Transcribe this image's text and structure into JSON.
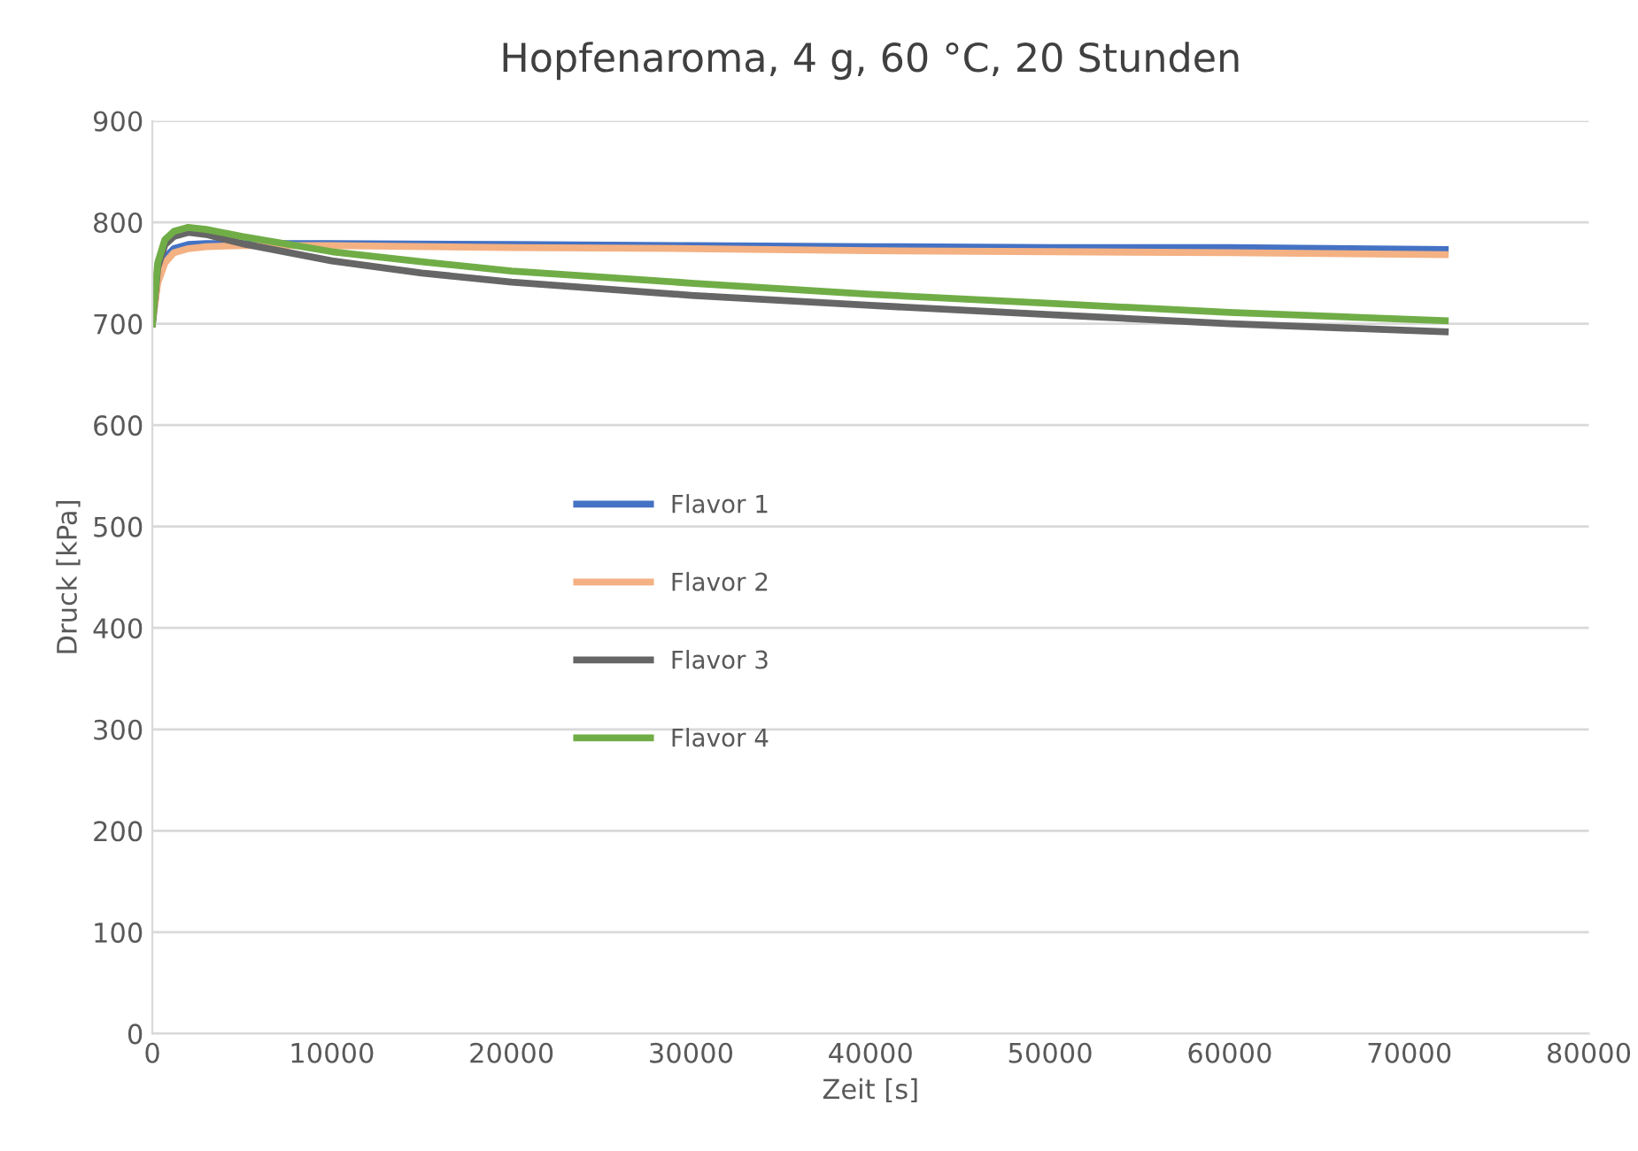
{
  "chart_data": {
    "type": "line",
    "title": "Hopfenaroma, 4 g, 60 °C, 20 Stunden",
    "xlabel": "Zeit [s]",
    "ylabel": "Druck [kPa]",
    "xlim": [
      0,
      80000
    ],
    "xticks": [
      0,
      10000,
      20000,
      30000,
      40000,
      50000,
      60000,
      70000,
      80000
    ],
    "ylim": [
      0,
      900
    ],
    "yticks": [
      0,
      100,
      200,
      300,
      400,
      500,
      600,
      700,
      800,
      900
    ],
    "grid": "y",
    "legend": "center left",
    "line_style": "solid",
    "marker": "none",
    "series": [
      {
        "name": "Flavor 1",
        "color": "#4472c4",
        "x": [
          0,
          300,
          700,
          1200,
          2000,
          3000,
          5000,
          10000,
          20000,
          30000,
          40000,
          50000,
          60000,
          72000
        ],
        "values": [
          700,
          745,
          765,
          774,
          778,
          779,
          779,
          779,
          778,
          777,
          776,
          775,
          775,
          773
        ]
      },
      {
        "name": "Flavor 2",
        "color": "#f4b183",
        "x": [
          0,
          300,
          700,
          1200,
          2000,
          3000,
          5000,
          10000,
          20000,
          30000,
          40000,
          50000,
          60000,
          72000
        ],
        "values": [
          700,
          740,
          760,
          770,
          774,
          776,
          777,
          777,
          775,
          774,
          772,
          771,
          770,
          768
        ]
      },
      {
        "name": "Flavor 3",
        "color": "#666666",
        "x": [
          0,
          300,
          700,
          1200,
          2000,
          3000,
          5000,
          10000,
          15000,
          20000,
          30000,
          40000,
          50000,
          60000,
          72000
        ],
        "values": [
          700,
          755,
          778,
          786,
          790,
          788,
          779,
          762,
          750,
          741,
          728,
          718,
          709,
          700,
          692
        ]
      },
      {
        "name": "Flavor 4",
        "color": "#70ad47",
        "x": [
          0,
          300,
          700,
          1200,
          2000,
          3000,
          5000,
          10000,
          15000,
          20000,
          30000,
          40000,
          50000,
          60000,
          72000
        ],
        "values": [
          700,
          760,
          783,
          791,
          795,
          793,
          786,
          771,
          761,
          752,
          740,
          729,
          720,
          711,
          703
        ]
      }
    ]
  }
}
